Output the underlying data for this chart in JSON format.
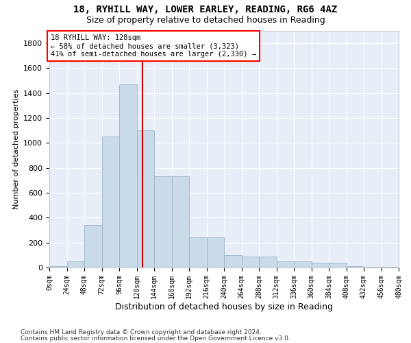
{
  "title1": "18, RYHILL WAY, LOWER EARLEY, READING, RG6 4AZ",
  "title2": "Size of property relative to detached houses in Reading",
  "xlabel": "Distribution of detached houses by size in Reading",
  "ylabel": "Number of detached properties",
  "bar_color": "#c9daea",
  "bar_edge_color": "#9ab4c8",
  "background_color": "#e8eef8",
  "grid_color": "#ffffff",
  "annotation_text": "18 RYHILL WAY: 128sqm\n← 58% of detached houses are smaller (3,323)\n41% of semi-detached houses are larger (2,330) →",
  "vline_x": 128,
  "vline_color": "#cc0000",
  "footnote1": "Contains HM Land Registry data © Crown copyright and database right 2024.",
  "footnote2": "Contains public sector information licensed under the Open Government Licence v3.0.",
  "bin_edges": [
    0,
    24,
    48,
    72,
    96,
    120,
    144,
    168,
    192,
    216,
    240,
    264,
    288,
    312,
    336,
    360,
    384,
    408,
    432,
    456,
    480
  ],
  "bar_heights": [
    10,
    50,
    340,
    1050,
    1470,
    1100,
    730,
    730,
    240,
    240,
    100,
    90,
    90,
    50,
    50,
    40,
    40,
    10,
    5,
    5
  ],
  "ylim": [
    0,
    1900
  ],
  "xlim": [
    0,
    480
  ],
  "yticks": [
    0,
    200,
    400,
    600,
    800,
    1000,
    1200,
    1400,
    1600,
    1800
  ],
  "property_sqm": 128
}
